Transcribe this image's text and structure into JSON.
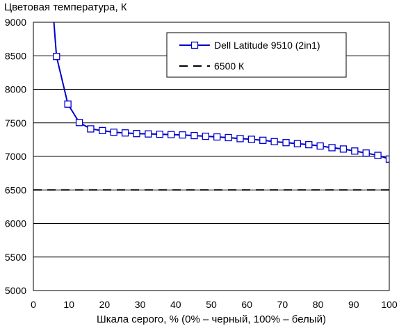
{
  "chart_data": {
    "type": "line",
    "title": "",
    "ylabel": "Цветовая температура, К",
    "xlabel": "Шкала серого, % (0% – черный, 100% – белый)",
    "xlim": [
      0,
      100
    ],
    "ylim": [
      5000,
      9000
    ],
    "x_ticks": [
      "0",
      "10",
      "20",
      "30",
      "40",
      "50",
      "60",
      "70",
      "80",
      "90",
      "100"
    ],
    "y_ticks": [
      "5000",
      "5500",
      "6000",
      "6500",
      "7000",
      "7500",
      "8000",
      "8500",
      "9000"
    ],
    "grid": "horizontal",
    "legend_position": "top-right",
    "series": [
      {
        "name": "Dell Latitude 9510 (2in1)",
        "color": "#0000cc",
        "marker": "square",
        "x": [
          3.2,
          6.5,
          9.7,
          12.9,
          16.1,
          19.4,
          22.6,
          25.8,
          29.0,
          32.3,
          35.5,
          38.7,
          41.9,
          45.2,
          48.4,
          51.6,
          54.8,
          58.1,
          61.3,
          64.5,
          67.7,
          71.0,
          74.2,
          77.4,
          80.6,
          83.9,
          87.1,
          90.3,
          93.5,
          96.8,
          100.0
        ],
        "y": [
          10800,
          8490,
          7780,
          7505,
          7410,
          7385,
          7360,
          7350,
          7340,
          7335,
          7330,
          7325,
          7320,
          7310,
          7300,
          7290,
          7280,
          7265,
          7255,
          7240,
          7220,
          7205,
          7190,
          7175,
          7155,
          7130,
          7110,
          7080,
          7050,
          7015,
          6960
        ]
      },
      {
        "name": "6500 К",
        "color": "#000000",
        "style": "dashed",
        "x": [
          0,
          100
        ],
        "y": [
          6500,
          6500
        ]
      }
    ]
  }
}
